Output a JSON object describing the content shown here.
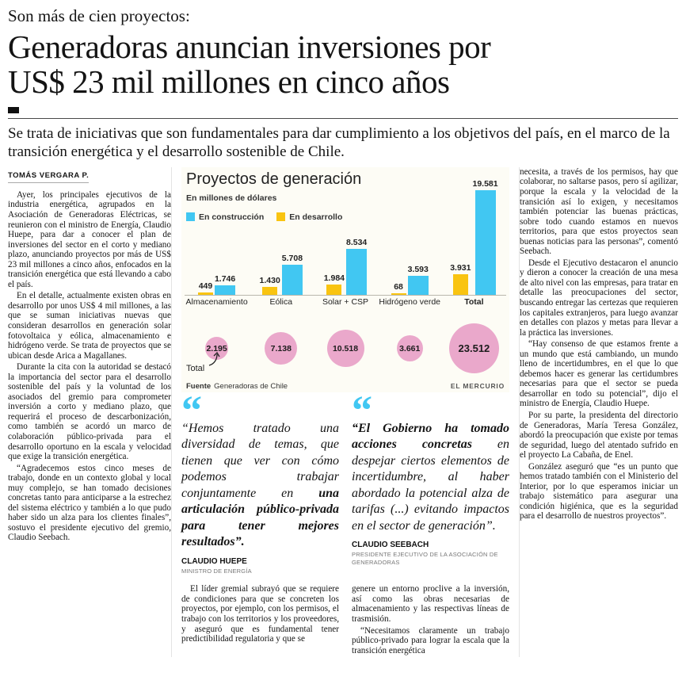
{
  "masthead": {
    "kicker": "Son más de cien proyectos:",
    "headline_line1": "Generadoras anuncian inversiones por",
    "headline_line2": "US$ 23 mil millones en cinco años",
    "deck": "Se trata de iniciativas que son fundamentales para dar cumplimiento a los objetivos del país, en el marco de la transición energética y el desarrollo sostenible de Chile.",
    "byline": "TOMÁS VERGARA P."
  },
  "article": {
    "left": [
      "Ayer, los principales ejecutivos de la industria energética, agrupados en la Asociación de Generadoras Eléctricas, se reunieron con el ministro de Energía, Claudio Huepe, para dar a conocer el plan de inversiones del sector en el corto y mediano plazo, anunciando proyectos por más de US$ 23 mil millones a cinco años, enfocados en la transición energética que está llevando a cabo el país.",
      "En el detalle, actualmente existen obras en desarrollo por unos US$ 4 mil millones, a las que se suman iniciativas nuevas que consideran desarrollos en generación solar fotovoltaica y eólica, almacenamiento e hidrógeno verde. Se trata de proyectos que se ubican desde Arica a Magallanes.",
      "Durante la cita con la autoridad se destacó la importancia del sector para el desarrollo sostenible del país y la voluntad de los asociados del gremio para comprometer inversión a corto y mediano plazo, que requerirá el proceso de descarbonización, como también se acordó un marco de colaboración público-privada para el desarrollo oportuno en la escala y velocidad que exige la transición energética.",
      "“Agradecemos estos cinco meses de trabajo, donde en un contexto global y local muy complejo, se han tomado decisiones concretas tanto para anticiparse a la estrechez del sistema eléctrico y también a lo que pudo haber sido un alza para los clientes finales”, sostuvo el presidente ejecutivo del gremio, Claudio Seebach."
    ],
    "mid1": [
      "El líder gremial subrayó que se requiere de condiciones para que se concreten los proyectos, por ejemplo, con los permisos, el trabajo con los territorios y los proveedores, y aseguró que es fundamental tener predictibilidad regulatoria y que se"
    ],
    "mid2": [
      "genere un entorno proclive a la inversión, así como las obras necesarias de almacenamiento y las respectivas líneas de trasmisión.",
      "“Necesitamos claramente un trabajo público-privado para lograr la escala que la transición energética"
    ],
    "right": [
      "necesita, a través de los permisos, hay que colaborar, no saltarse pasos, pero sí agilizar, porque la escala y la velocidad de la transición así lo exigen, y necesitamos también potenciar las buenas prácticas, sobre todo cuando estamos en nuevos territorios, para que estos proyectos sean buenas noticias para las personas”, comentó Seebach.",
      "Desde el Ejecutivo destacaron el anuncio y dieron a conocer la creación de una mesa de alto nivel con las empresas, para tratar en detalle las preocupaciones del sector, buscando entregar las certezas que requieren los capitales extranjeros, para luego avanzar en detalles con plazos y metas para llevar a la práctica las inversiones.",
      "“Hay consenso de que estamos frente a un mundo que está cambiando, un mundo lleno de incertidumbres, en el que lo que debemos hacer es generar las certidumbres necesarias para que el sector se pueda desarrollar en todo su potencial”, dijo el ministro de Energía, Claudio Huepe.",
      "Por su parte, la presidenta del directorio de Generadoras, María Teresa González, abordó la preocupación que existe por temas de seguridad, luego del atentado sufrido en el proyecto La Cabaña, de Enel.",
      "González aseguró que “es un punto que hemos tratado también con el Ministerio del Interior, por lo que esperamos iniciar un trabajo sistemático para asegurar una condición higiénica, que es la seguridad para el desarrollo de nuestros proyectos”."
    ]
  },
  "chart_data": {
    "type": "bar",
    "title": "Proyectos de generación",
    "subtitle": "En millones de dólares",
    "categories": [
      "Almacenamiento",
      "Eólica",
      "Solar + CSP",
      "Hidrógeno verde",
      "Total"
    ],
    "series": [
      {
        "name": "En construcción",
        "color": "#41c7f2",
        "values": [
          1746,
          5708,
          8534,
          3593,
          19581
        ],
        "labels": [
          "1.746",
          "5.708",
          "8.534",
          "3.593",
          "19.581"
        ]
      },
      {
        "name": "En desarrollo",
        "color": "#f9c411",
        "values": [
          449,
          1430,
          1984,
          68,
          3931
        ],
        "labels": [
          "449",
          "1.430",
          "1.984",
          "68",
          "3.931"
        ]
      }
    ],
    "totals": {
      "label": "Total",
      "color": "#eaa8cb",
      "values": [
        2195,
        7138,
        10518,
        3661,
        23512
      ],
      "labels": [
        "2.195",
        "7.138",
        "10.518",
        "3.661",
        "23.512"
      ]
    },
    "ylim": [
      0,
      19581
    ],
    "legend_position": "top-left",
    "grid": false,
    "source_label": "Fuente",
    "source": "Generadoras de Chile",
    "credit": "EL MERCURIO"
  },
  "quotes": [
    {
      "glyph": "“",
      "part1": "“Hemos tratado una diversidad de temas, que tienen que ver con cómo podemos trabajar conjuntamente en ",
      "part2": "una articulación público-privada para tener mejores resultados”.",
      "author": "CLAUDIO HUEPE",
      "role": "MINISTRO DE ENERGÍA"
    },
    {
      "glyph": "“",
      "part1": "“El Gobierno ha tomado acciones concretas ",
      "part2": "en despejar ciertos elementos de incertidumbre, al haber abordado la potencial alza de tarifas (...) evitando impactos en el sector de generación”.",
      "author": "CLAUDIO SEEBACH",
      "role": "PRESIDENTE EJECUTIVO DE LA ASOCIACIÓN DE GENERADORAS"
    }
  ]
}
